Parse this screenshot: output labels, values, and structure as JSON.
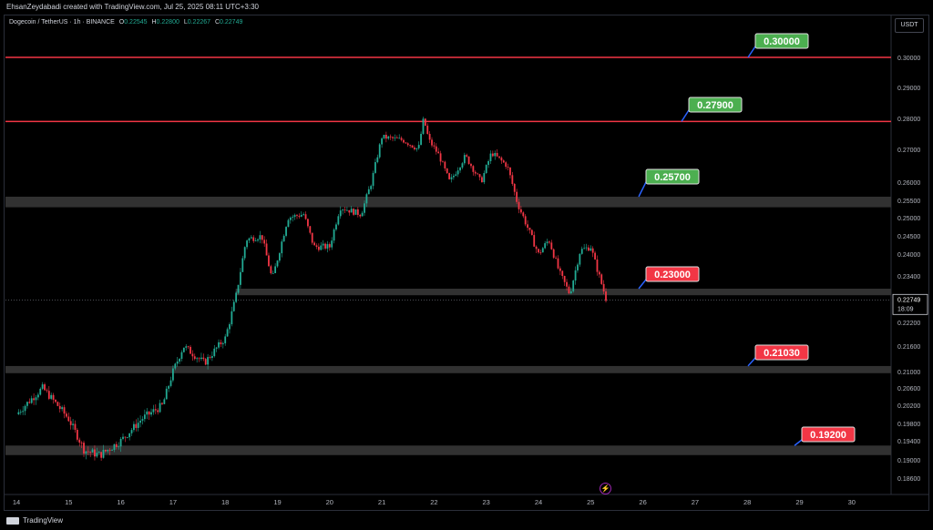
{
  "header": {
    "attribution": "EhsanZeydabadi created with TradingView.com, Jul 25, 2025 08:11 UTC+3:30"
  },
  "legend": {
    "symbol": "Dogecoin / TetherUS · 1h · BINANCE",
    "o_label": "O",
    "o_value": "0.22545",
    "h_label": "H",
    "h_value": "0.22800",
    "l_label": "L",
    "l_value": "0.22267",
    "c_label": "C",
    "c_value": "0.22749"
  },
  "currency_button": "USDT",
  "footer": {
    "brand": "TradingView"
  },
  "event_icon": "lightning-icon",
  "chart_data": {
    "type": "candlestick",
    "x_ticks": [
      "14",
      "15",
      "16",
      "17",
      "18",
      "19",
      "20",
      "21",
      "22",
      "23",
      "24",
      "25",
      "26",
      "27",
      "28",
      "29",
      "30"
    ],
    "y_ticks": [
      "0.30000",
      "0.29000",
      "0.28000",
      "0.27000",
      "0.26000",
      "0.25500",
      "0.25000",
      "0.24500",
      "0.24000",
      "0.23400",
      "0.22800",
      "0.22200",
      "0.21600",
      "0.21000",
      "0.20600",
      "0.20200",
      "0.19800",
      "0.19400",
      "0.19000",
      "0.18600"
    ],
    "last_price": "0.22749",
    "countdown": "18:09",
    "colors": {
      "up": "#22ab94",
      "down": "#f23645",
      "line": "#f23645"
    },
    "horizontal_lines": [
      {
        "price": 0.3,
        "label": "0.30000",
        "color": "#4caf50"
      },
      {
        "price": 0.279,
        "label": "0.27900",
        "color": "#4caf50"
      }
    ],
    "zones": [
      {
        "top": 0.256,
        "bottom": 0.253,
        "label": "0.25700",
        "color": "#4caf50"
      },
      {
        "top": 0.2305,
        "bottom": 0.2287,
        "label": "0.23000",
        "color": "#f23645"
      },
      {
        "top": 0.2113,
        "bottom": 0.2096,
        "label": "0.21030",
        "color": "#f23645"
      },
      {
        "top": 0.193,
        "bottom": 0.191,
        "label": "0.19200",
        "color": "#f23645"
      }
    ],
    "price_path": [
      [
        14.0,
        0.2
      ],
      [
        14.5,
        0.206
      ],
      [
        15.0,
        0.199
      ],
      [
        15.3,
        0.192
      ],
      [
        15.6,
        0.191
      ],
      [
        16.0,
        0.194
      ],
      [
        16.4,
        0.199
      ],
      [
        16.8,
        0.202
      ],
      [
        17.0,
        0.21
      ],
      [
        17.2,
        0.216
      ],
      [
        17.6,
        0.212
      ],
      [
        18.0,
        0.218
      ],
      [
        18.2,
        0.228
      ],
      [
        18.4,
        0.244
      ],
      [
        18.7,
        0.245
      ],
      [
        18.9,
        0.233
      ],
      [
        19.2,
        0.25
      ],
      [
        19.5,
        0.251
      ],
      [
        19.7,
        0.242
      ],
      [
        20.0,
        0.242
      ],
      [
        20.2,
        0.253
      ],
      [
        20.6,
        0.251
      ],
      [
        20.8,
        0.26
      ],
      [
        21.0,
        0.274
      ],
      [
        21.4,
        0.273
      ],
      [
        21.7,
        0.27
      ],
      [
        21.8,
        0.28
      ],
      [
        21.9,
        0.273
      ],
      [
        22.1,
        0.268
      ],
      [
        22.3,
        0.26
      ],
      [
        22.6,
        0.268
      ],
      [
        22.9,
        0.26
      ],
      [
        23.1,
        0.269
      ],
      [
        23.4,
        0.265
      ],
      [
        23.6,
        0.254
      ],
      [
        23.8,
        0.247
      ],
      [
        24.0,
        0.24
      ],
      [
        24.2,
        0.244
      ],
      [
        24.4,
        0.235
      ],
      [
        24.6,
        0.229
      ],
      [
        24.8,
        0.241
      ],
      [
        25.0,
        0.242
      ],
      [
        25.1,
        0.237
      ],
      [
        25.3,
        0.2275
      ]
    ]
  }
}
